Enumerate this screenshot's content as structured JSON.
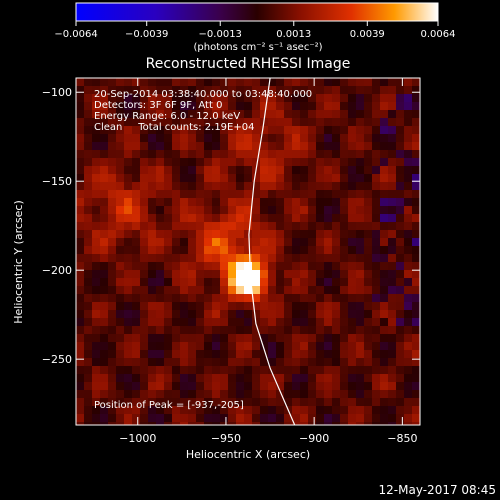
{
  "chart_data": {
    "type": "heatmap",
    "title": "Reconstructed RHESSI Image",
    "xlabel": "Heliocentric X (arcsec)",
    "ylabel": "Heliocentric Y (arcsec)",
    "xlim": [
      -1035,
      -840
    ],
    "ylim": [
      -287,
      -92
    ],
    "xticks": [
      -1000,
      -950,
      -900,
      -850
    ],
    "yticks": [
      -100,
      -150,
      -200,
      -250
    ],
    "colorbar": {
      "min": -0.0064,
      "max": 0.0064,
      "ticks": [
        -0.0064,
        -0.0039,
        -0.0013,
        0.0013,
        0.0039,
        0.0064
      ],
      "tick_labels": [
        "−0.0064",
        "−0.0039",
        "−0.0013",
        "0.0013",
        "0.0039",
        "0.0064"
      ],
      "units": "(photons cm⁻² s⁻¹ asec⁻²)"
    },
    "annotations": [
      "20-Sep-2014 03:38:40.000 to 03:48:40.000",
      "Detectors: 3F 6F 9F, Att 0",
      "Energy Range: 6.0 - 12.0 keV",
      "Clean     Total counts: 2.19E+04"
    ],
    "peak": {
      "x": -937,
      "y": -205,
      "label": "Position of Peak = [-937,-205]"
    },
    "sources": [
      {
        "x": -937,
        "y": -205,
        "value": 0.0064
      },
      {
        "x": -950,
        "y": -185,
        "value": 0.0025
      },
      {
        "x": -1010,
        "y": -165,
        "value": 0.0018
      },
      {
        "x": -930,
        "y": -130,
        "value": 0.0015
      }
    ],
    "limb": [
      [
        -925,
        -92
      ],
      [
        -929,
        -120
      ],
      [
        -934,
        -150
      ],
      [
        -937,
        -180
      ],
      [
        -936,
        -205
      ],
      [
        -933,
        -230
      ],
      [
        -925,
        -255
      ],
      [
        -911,
        -287
      ]
    ]
  },
  "timestamp": "12-May-2017 08:45"
}
